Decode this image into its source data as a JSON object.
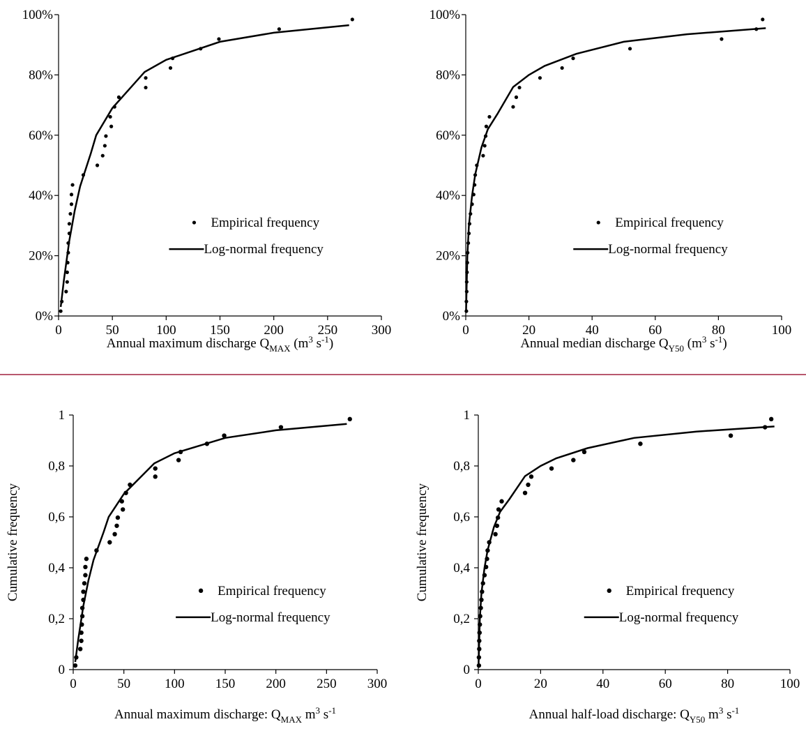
{
  "chart_data": [
    {
      "type": "scatter",
      "xlim": [
        0,
        300
      ],
      "ylim": [
        0,
        100
      ],
      "xticks": [
        0,
        50,
        100,
        150,
        200,
        250,
        300
      ],
      "yticks": [
        {
          "value": 0,
          "label": "0%"
        },
        {
          "value": 20,
          "label": "20%"
        },
        {
          "value": 40,
          "label": "40%"
        },
        {
          "value": 60,
          "label": "60%"
        },
        {
          "value": 80,
          "label": "80%"
        },
        {
          "value": 100,
          "label": "100%"
        }
      ],
      "xlabel": [
        {
          "text": "Annual maximum discharge Q"
        },
        {
          "sub": "MAX"
        },
        {
          "text": " (m"
        },
        {
          "sup": "3"
        },
        {
          "text": " s"
        },
        {
          "sup": "-1"
        },
        {
          "text": ")"
        }
      ],
      "legend": "right",
      "grid": false,
      "series": [
        {
          "name": "Empirical frequency",
          "mode": "markers",
          "color": "#000000",
          "x": [
            2,
            3,
            7,
            8,
            8,
            8.5,
            9,
            9,
            10,
            10,
            11,
            12,
            12,
            13,
            23,
            36,
            41,
            43,
            44,
            49,
            48,
            52,
            56,
            81,
            81,
            104,
            106,
            132,
            149,
            205,
            273
          ],
          "values": [
            1.6,
            4.8,
            8.1,
            11.3,
            14.5,
            17.7,
            21.0,
            24.2,
            27.4,
            30.6,
            33.9,
            37.1,
            40.3,
            43.5,
            46.8,
            50.0,
            53.2,
            56.5,
            59.7,
            62.9,
            66.1,
            69.4,
            72.6,
            75.8,
            79.0,
            82.3,
            85.5,
            88.7,
            91.9,
            95.2,
            98.4
          ]
        },
        {
          "name": "Log-normal frequency",
          "mode": "line",
          "color": "#000000",
          "x": [
            2,
            5,
            10,
            15,
            20,
            30,
            35,
            50,
            80,
            100,
            150,
            200,
            270
          ],
          "values": [
            3,
            12,
            25,
            35,
            43,
            54,
            60,
            69,
            81,
            85,
            91,
            94,
            96.5
          ]
        }
      ]
    },
    {
      "type": "scatter",
      "xlim": [
        0,
        100
      ],
      "ylim": [
        0,
        100
      ],
      "xticks": [
        0,
        20,
        40,
        60,
        80,
        100
      ],
      "yticks": [
        {
          "value": 0,
          "label": "0%"
        },
        {
          "value": 20,
          "label": "20%"
        },
        {
          "value": 40,
          "label": "40%"
        },
        {
          "value": 60,
          "label": "60%"
        },
        {
          "value": 80,
          "label": "80%"
        },
        {
          "value": 100,
          "label": "100%"
        }
      ],
      "xlabel": [
        {
          "text": "Annual median discharge Q"
        },
        {
          "sub": "Y50"
        },
        {
          "text": " (m"
        },
        {
          "sup": "3"
        },
        {
          "text": " s"
        },
        {
          "sup": "-1"
        },
        {
          "text": ")"
        }
      ],
      "legend": "right",
      "grid": false,
      "series": [
        {
          "name": "Empirical frequency",
          "mode": "markers",
          "color": "#000000",
          "x": [
            0.2,
            0.2,
            0.3,
            0.3,
            0.4,
            0.5,
            0.6,
            0.8,
            1,
            1.2,
            1.5,
            2,
            2.5,
            2.8,
            3,
            3.5,
            5.5,
            6,
            6.3,
            6.5,
            7.5,
            15,
            16,
            17,
            23.5,
            30.5,
            34,
            52,
            81,
            92,
            94
          ],
          "values": [
            1.6,
            4.8,
            8.1,
            11.3,
            14.5,
            17.7,
            21.0,
            24.2,
            27.4,
            30.6,
            33.9,
            37.1,
            40.3,
            43.5,
            46.8,
            50.0,
            53.2,
            56.5,
            59.7,
            62.9,
            66.1,
            69.4,
            72.6,
            75.8,
            79.0,
            82.3,
            85.5,
            88.7,
            91.9,
            95.2,
            98.4
          ]
        },
        {
          "name": "Log-normal frequency",
          "mode": "line",
          "color": "#000000",
          "x": [
            0.1,
            0.5,
            1,
            2,
            3,
            5,
            7,
            10,
            15,
            20,
            25,
            35,
            50,
            70,
            95
          ],
          "values": [
            2,
            20,
            30,
            40,
            47,
            56,
            62,
            67,
            76,
            80,
            83,
            87,
            91,
            93.5,
            95.5
          ]
        }
      ]
    },
    {
      "type": "scatter",
      "xlim": [
        0,
        300
      ],
      "ylim": [
        0,
        1
      ],
      "xticks": [
        0,
        50,
        100,
        150,
        200,
        250,
        300
      ],
      "yticks": [
        0,
        {
          "value": 0.2,
          "label": "0,2"
        },
        {
          "value": 0.4,
          "label": "0,4"
        },
        {
          "value": 0.6,
          "label": "0,6"
        },
        {
          "value": 0.8,
          "label": "0,8"
        },
        1
      ],
      "xlabel": [
        {
          "text": "Annual maximum discharge: Q"
        },
        {
          "sub": "MAX"
        },
        {
          "text": " m"
        },
        {
          "sup": "3"
        },
        {
          "text": " s"
        },
        {
          "sup": "-1"
        }
      ],
      "ylabel": "Cumulative frequency",
      "legend": "right",
      "grid": false,
      "series": [
        {
          "name": "Empirical frequency",
          "mode": "markers",
          "color": "#000000",
          "x": [
            2,
            3,
            7,
            8,
            8,
            8.5,
            9,
            9,
            10,
            10,
            11,
            12,
            12,
            13,
            23,
            36,
            41,
            43,
            44,
            49,
            48,
            52,
            56,
            81,
            81,
            104,
            106,
            132,
            149,
            205,
            273
          ],
          "values": [
            0.016,
            0.048,
            0.081,
            0.113,
            0.145,
            0.177,
            0.21,
            0.242,
            0.274,
            0.306,
            0.339,
            0.371,
            0.403,
            0.435,
            0.468,
            0.5,
            0.532,
            0.565,
            0.597,
            0.629,
            0.661,
            0.694,
            0.726,
            0.758,
            0.79,
            0.823,
            0.855,
            0.887,
            0.919,
            0.952,
            0.984
          ]
        },
        {
          "name": "Log-normal frequency",
          "mode": "line",
          "color": "#000000",
          "x": [
            2,
            5,
            10,
            15,
            20,
            30,
            35,
            50,
            80,
            100,
            150,
            200,
            270
          ],
          "values": [
            0.03,
            0.12,
            0.25,
            0.35,
            0.43,
            0.54,
            0.6,
            0.69,
            0.81,
            0.85,
            0.91,
            0.94,
            0.965
          ]
        }
      ]
    },
    {
      "type": "scatter",
      "xlim": [
        0,
        100
      ],
      "ylim": [
        0,
        1
      ],
      "xticks": [
        0,
        20,
        40,
        60,
        80,
        100
      ],
      "yticks": [
        0,
        {
          "value": 0.2,
          "label": "0,2"
        },
        {
          "value": 0.4,
          "label": "0,4"
        },
        {
          "value": 0.6,
          "label": "0,6"
        },
        {
          "value": 0.8,
          "label": "0,8"
        },
        1
      ],
      "xlabel": [
        {
          "text": "Annual half-load discharge: Q"
        },
        {
          "sub": "Y50"
        },
        {
          "text": " m"
        },
        {
          "sup": "3"
        },
        {
          "text": " s"
        },
        {
          "sup": "-1"
        }
      ],
      "ylabel": "Cumulative frequency",
      "legend": "right",
      "grid": false,
      "series": [
        {
          "name": "Empirical frequency",
          "mode": "markers",
          "color": "#000000",
          "x": [
            0.2,
            0.2,
            0.3,
            0.3,
            0.4,
            0.5,
            0.6,
            0.8,
            1,
            1.2,
            1.5,
            2,
            2.5,
            2.8,
            3,
            3.5,
            5.5,
            6,
            6.3,
            6.5,
            7.5,
            15,
            16,
            17,
            23.5,
            30.5,
            34,
            52,
            81,
            92,
            94
          ],
          "values": [
            0.016,
            0.048,
            0.081,
            0.113,
            0.145,
            0.177,
            0.21,
            0.242,
            0.274,
            0.306,
            0.339,
            0.371,
            0.403,
            0.435,
            0.468,
            0.5,
            0.532,
            0.565,
            0.597,
            0.629,
            0.661,
            0.694,
            0.726,
            0.758,
            0.79,
            0.823,
            0.855,
            0.887,
            0.919,
            0.952,
            0.984
          ]
        },
        {
          "name": "Log-normal frequency",
          "mode": "line",
          "color": "#000000",
          "x": [
            0.1,
            0.5,
            1,
            2,
            3,
            5,
            7,
            10,
            15,
            20,
            25,
            35,
            50,
            70,
            95
          ],
          "values": [
            0.02,
            0.2,
            0.3,
            0.4,
            0.47,
            0.56,
            0.62,
            0.67,
            0.76,
            0.8,
            0.83,
            0.87,
            0.91,
            0.935,
            0.955
          ]
        }
      ]
    }
  ]
}
